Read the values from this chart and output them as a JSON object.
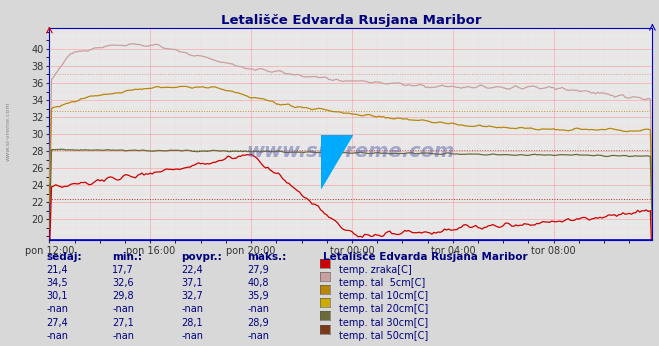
{
  "title": "Letališče Edvarda Rusjana Maribor",
  "background_color": "#d8d8d8",
  "plot_bg_color": "#e8e8e8",
  "xlim": [
    0,
    287
  ],
  "ylim": [
    17.5,
    42.5
  ],
  "yticks": [
    20,
    22,
    24,
    26,
    28,
    30,
    32,
    34,
    36,
    38,
    40
  ],
  "xtick_labels": [
    "pon 12:00",
    "pon 16:00",
    "pon 20:00",
    "tor 00:00",
    "tor 04:00",
    "tor 08:00"
  ],
  "xtick_positions": [
    0,
    48,
    96,
    144,
    192,
    240
  ],
  "series_colors": {
    "zrak": "#cc0000",
    "tal5": "#c8a0a0",
    "tal10": "#b8860b",
    "tal30": "#6b6b3a"
  },
  "avg_colors": {
    "zrak": "#cc0000",
    "tal5": "#c8a0a0",
    "tal10": "#b8860b",
    "tal30": "#6b6b3a"
  },
  "avg_values": {
    "zrak": 22.4,
    "tal5": 37.1,
    "tal10": 32.7,
    "tal30": 28.1
  },
  "legend_colors": [
    "#cc0000",
    "#c8a0a0",
    "#b8860b",
    "#ccaa00",
    "#6b6b3a",
    "#7b3a1a"
  ],
  "legend_labels": [
    "temp. zraka[C]",
    "temp. tal  5cm[C]",
    "temp. tal 10cm[C]",
    "temp. tal 20cm[C]",
    "temp. tal 30cm[C]",
    "temp. tal 50cm[C]"
  ],
  "table_headers": [
    "sedaj:",
    "min.:",
    "povpr.:",
    "maks.:"
  ],
  "table_data": [
    [
      "21,4",
      "17,7",
      "22,4",
      "27,9"
    ],
    [
      "34,5",
      "32,6",
      "37,1",
      "40,8"
    ],
    [
      "30,1",
      "29,8",
      "32,7",
      "35,9"
    ],
    [
      "-nan",
      "-nan",
      "-nan",
      "-nan"
    ],
    [
      "27,4",
      "27,1",
      "28,1",
      "28,9"
    ],
    [
      "-nan",
      "-nan",
      "-nan",
      "-nan"
    ]
  ],
  "watermark": "www.si-vreme.com",
  "left_text": "www.si-vreme.com",
  "grid_major_color": "#ff9999",
  "grid_minor_color": "#ffcccc",
  "bottom_line_color": "#0000cc",
  "axis_color": "#0000cc"
}
